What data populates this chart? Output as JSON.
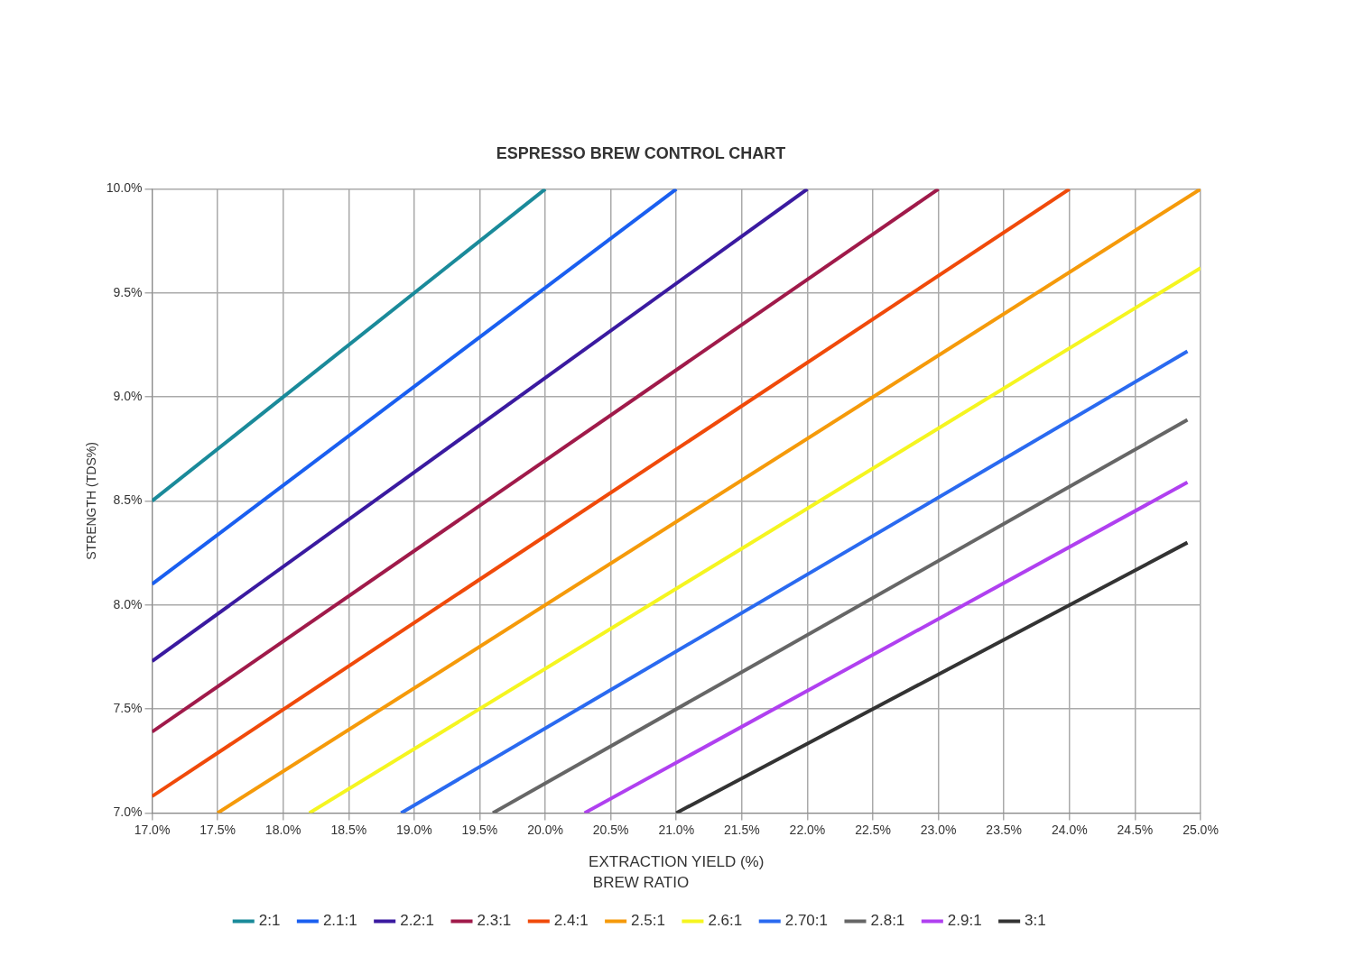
{
  "chart_data": {
    "type": "line",
    "title": "ESPRESSO BREW CONTROL CHART",
    "xlabel": "EXTRACTION YIELD (%)",
    "ylabel": "STRENGTH (TDS%)",
    "legend_title": "BREW RATIO",
    "legend": "bottom",
    "grid": true,
    "marker": "none",
    "line_style": "solid",
    "xlim": [
      17,
      25
    ],
    "ylim": [
      7,
      10
    ],
    "xticks": [
      {
        "value": 17,
        "label": "17.0%"
      },
      {
        "value": 17.5,
        "label": "17.5%"
      },
      {
        "value": 18,
        "label": "18.0%"
      },
      {
        "value": 18.5,
        "label": "18.5%"
      },
      {
        "value": 19,
        "label": "19.0%"
      },
      {
        "value": 19.5,
        "label": "19.5%"
      },
      {
        "value": 20,
        "label": "20.0%"
      },
      {
        "value": 20.5,
        "label": "20.5%"
      },
      {
        "value": 21,
        "label": "21.0%"
      },
      {
        "value": 21.5,
        "label": "21.5%"
      },
      {
        "value": 22,
        "label": "22.0%"
      },
      {
        "value": 22.5,
        "label": "22.5%"
      },
      {
        "value": 23,
        "label": "23.0%"
      },
      {
        "value": 23.5,
        "label": "23.5%"
      },
      {
        "value": 24,
        "label": "24.0%"
      },
      {
        "value": 24.5,
        "label": "24.5%"
      },
      {
        "value": 25,
        "label": "25.0%"
      }
    ],
    "yticks": [
      {
        "value": 7,
        "label": "7.0%"
      },
      {
        "value": 7.5,
        "label": "7.5%"
      },
      {
        "value": 8,
        "label": "8.0%"
      },
      {
        "value": 8.5,
        "label": "8.5%"
      },
      {
        "value": 9,
        "label": "9.0%"
      },
      {
        "value": 9.5,
        "label": "9.5%"
      },
      {
        "value": 10,
        "label": "10.0%"
      }
    ],
    "series": [
      {
        "name": "2:1",
        "color": "#1a8a9a",
        "x": [
          17,
          20
        ],
        "values": [
          8.5,
          10
        ]
      },
      {
        "name": "2.1:1",
        "color": "#1a5ff0",
        "x": [
          17,
          21
        ],
        "values": [
          8.1,
          10
        ]
      },
      {
        "name": "2.2:1",
        "color": "#3a1aa0",
        "x": [
          17,
          22
        ],
        "values": [
          7.73,
          10
        ]
      },
      {
        "name": "2.3:1",
        "color": "#a01a4a",
        "x": [
          17,
          23
        ],
        "values": [
          7.39,
          10
        ]
      },
      {
        "name": "2.4:1",
        "color": "#f04a0a",
        "x": [
          17,
          24
        ],
        "values": [
          7.08,
          10
        ]
      },
      {
        "name": "2.5:1",
        "color": "#f59a0a",
        "x": [
          17.5,
          25
        ],
        "values": [
          7,
          10
        ]
      },
      {
        "name": "2.6:1",
        "color": "#f5f520",
        "x": [
          18.2,
          25
        ],
        "values": [
          7,
          9.62
        ]
      },
      {
        "name": "2.70:1",
        "color": "#2a6af0",
        "x": [
          18.9,
          24.9
        ],
        "values": [
          7,
          9.22
        ]
      },
      {
        "name": "2.8:1",
        "color": "#666666",
        "x": [
          19.6,
          24.9
        ],
        "values": [
          7,
          8.89
        ]
      },
      {
        "name": "2.9:1",
        "color": "#b040f0",
        "x": [
          20.3,
          24.9
        ],
        "values": [
          7,
          8.59
        ]
      },
      {
        "name": "3:1",
        "color": "#333333",
        "x": [
          21,
          24.9
        ],
        "values": [
          7,
          8.3
        ]
      }
    ]
  }
}
